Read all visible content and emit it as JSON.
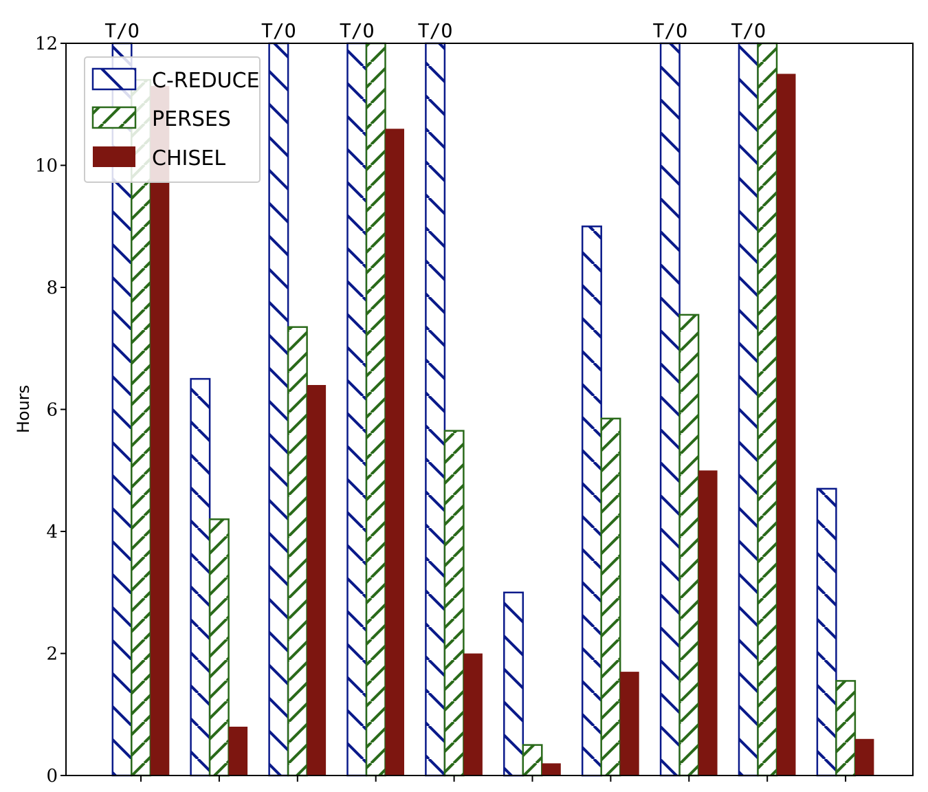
{
  "chart_data": {
    "type": "bar",
    "title": "",
    "xlabel": "",
    "ylabel": "Hours",
    "ylim": [
      0,
      12
    ],
    "yticks": [
      0,
      2,
      4,
      6,
      8,
      10,
      12
    ],
    "categories": [
      "",
      "",
      "",
      "",
      "",
      "",
      "",
      "",
      "",
      ""
    ],
    "timeout_label": "T/O",
    "legend_position": "upper-left",
    "grid": false,
    "series": [
      {
        "name": "C-REDUCE",
        "color": "#0a1a8a",
        "pattern": "backslash",
        "values": [
          12,
          6.5,
          12,
          12,
          12,
          3.0,
          9.0,
          12,
          12,
          4.7
        ],
        "timeout": [
          true,
          false,
          true,
          true,
          true,
          false,
          false,
          true,
          true,
          false
        ]
      },
      {
        "name": "PERSES",
        "color": "#2a6a1a",
        "pattern": "slash",
        "values": [
          11.4,
          4.2,
          7.35,
          12,
          5.65,
          0.5,
          5.85,
          7.55,
          12,
          1.55
        ],
        "timeout": [
          false,
          false,
          false,
          false,
          false,
          false,
          false,
          false,
          false,
          false
        ]
      },
      {
        "name": "CHISEL",
        "color": "#7d1610",
        "pattern": "solid",
        "values": [
          11.3,
          0.8,
          6.4,
          10.6,
          2.0,
          0.2,
          1.7,
          5.0,
          11.5,
          0.6
        ],
        "timeout": [
          false,
          false,
          false,
          false,
          false,
          false,
          false,
          false,
          false,
          false
        ]
      }
    ]
  }
}
